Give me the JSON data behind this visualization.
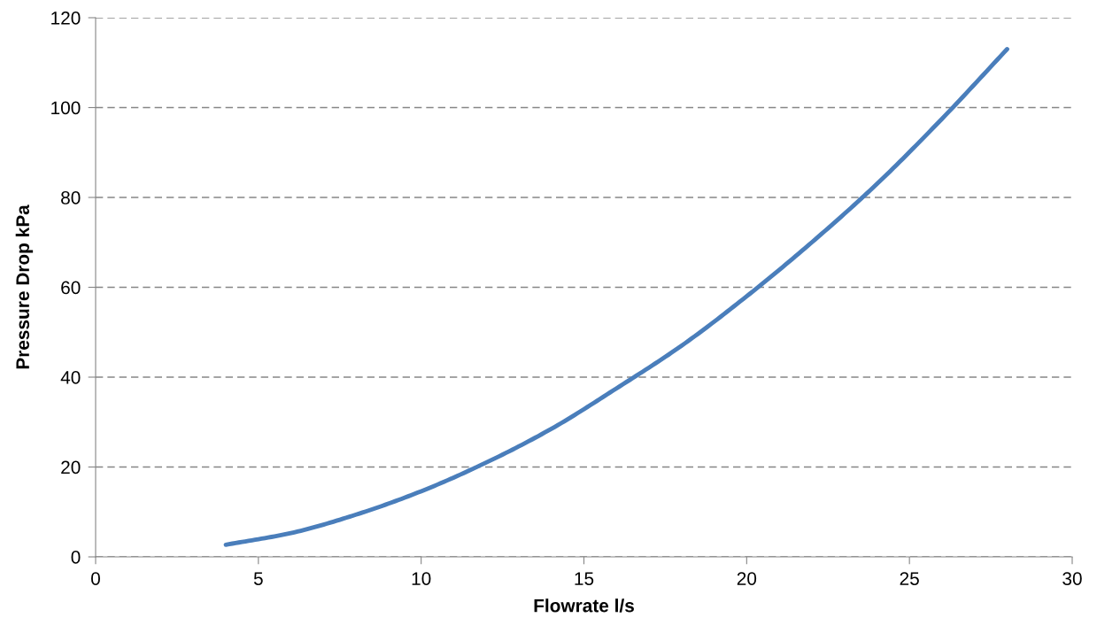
{
  "chart_data": {
    "type": "line",
    "xlabel": "Flowrate l/s",
    "ylabel": "Pressure Drop kPa",
    "x": [
      4,
      6,
      8,
      10,
      12,
      14,
      16,
      18,
      20,
      22,
      24,
      26,
      28
    ],
    "series": [
      {
        "color": "#4a7ebb",
        "values": [
          2.7,
          5.3,
          9.4,
          14.6,
          21,
          28.5,
          37.5,
          47,
          58,
          70,
          83,
          97.5,
          113
        ]
      }
    ],
    "xlim": [
      0,
      30
    ],
    "xticks": [
      0,
      5,
      10,
      15,
      20,
      25,
      30
    ],
    "ylim": [
      0,
      120
    ],
    "yticks": [
      0,
      20,
      40,
      60,
      80,
      100,
      120
    ],
    "grid": "y",
    "legend": false,
    "marker": "none",
    "line_style": "solid"
  }
}
